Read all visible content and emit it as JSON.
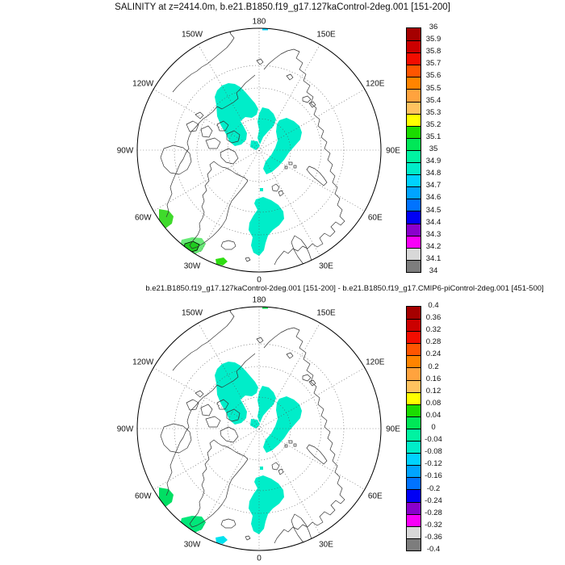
{
  "page": {
    "background": "#FFFFFF"
  },
  "figure1": {
    "title": "SALINITY at z=2414.0m, b.e21.B1850.f19_g17.127kaControl-2deg.001 [151-200]",
    "colorbar_labels": [
      "36",
      "35.9",
      "35.8",
      "35.7",
      "35.6",
      "35.5",
      "35.4",
      "35.3",
      "35.2",
      "35.1",
      "35",
      "34.9",
      "34.8",
      "34.7",
      "34.6",
      "34.5",
      "34.4",
      "34.3",
      "34.2",
      "34.1",
      "34"
    ],
    "map_fills": {
      "blobs": "#00EDC9",
      "top_sliver": "#00D2FF",
      "patch_60w": "#3FDA2B",
      "patch_30w_outer": "#68EA77",
      "patch_30w_core": "#1FCD1F",
      "patch_30w_core_stroke": "#000000",
      "patch_small": "#2FDD12"
    }
  },
  "figure2": {
    "title": "b.e21.B1850.f19_g17.127kaControl-2deg.001 [151-200] - b.e21.B1850.f19_g17.CMIP6-piControl-2deg.001 [451-500]",
    "colorbar_labels": [
      "0.4",
      "0.36",
      "0.32",
      "0.28",
      "0.24",
      "0.2",
      "0.16",
      "0.12",
      "0.08",
      "0.04",
      "0",
      "-0.04",
      "-0.08",
      "-0.12",
      "-0.16",
      "-0.2",
      "-0.24",
      "-0.28",
      "-0.32",
      "-0.36",
      "-0.4"
    ],
    "map_fills": {
      "blobs": "#00EDC9",
      "top_sliver": "#00DC50",
      "patch_60w": "#00DF63",
      "patch_30w_outer": "#00E87A",
      "patch_30w_core": "#00E87A",
      "patch_30w_core_stroke": "none",
      "patch_small": "#00E2EE"
    }
  },
  "ring_labels": [
    {
      "text": "180",
      "angle": 90
    },
    {
      "text": "150W",
      "angle": 120
    },
    {
      "text": "150E",
      "angle": 60
    },
    {
      "text": "120W",
      "angle": 150
    },
    {
      "text": "120E",
      "angle": 30
    },
    {
      "text": "90W",
      "angle": 180
    },
    {
      "text": "90E",
      "angle": 0
    },
    {
      "text": "60W",
      "angle": 210
    },
    {
      "text": "60E",
      "angle": 330
    },
    {
      "text": "30W",
      "angle": 240
    },
    {
      "text": "30E",
      "angle": 300
    },
    {
      "text": "0",
      "angle": 270
    }
  ],
  "colorbar_colors": [
    "#A50000",
    "#CB0000",
    "#F30D00",
    "#FF5500",
    "#FF8400",
    "#FFA33E",
    "#FFC35F",
    "#FFFF00",
    "#1BDC00",
    "#00E757",
    "#00F3A1",
    "#00EDC9",
    "#00D2FF",
    "#00A4FF",
    "#0073FF",
    "#0000F5",
    "#8A00CC",
    "#F800F8",
    "#D8D8D8",
    "#7D7D7D"
  ],
  "chart_data": [
    {
      "type": "heatmap",
      "variant": "north-polar-stereographic filled-contour map",
      "title": "SALINITY at z=2414.0m, b.e21.B1850.f19_g17.127kaControl-2deg.001 [151-200]",
      "projection": "north polar stereographic, dashed lon lines every 30 deg, dashed lat circles, coastline outlines, white = no data / outside range",
      "longitude_ring_labels": [
        "180",
        "150W",
        "150E",
        "120W",
        "120E",
        "90W",
        "90E",
        "60W",
        "60E",
        "30W",
        "30E",
        "0"
      ],
      "legend_position": "vertical labelbar at right",
      "levels": [
        34,
        34.1,
        34.2,
        34.3,
        34.4,
        34.5,
        34.6,
        34.7,
        34.8,
        34.9,
        35,
        35.1,
        35.2,
        35.3,
        35.4,
        35.5,
        35.6,
        35.7,
        35.8,
        35.9,
        36
      ],
      "colors_top_to_bottom": [
        "#A50000",
        "#CB0000",
        "#F30D00",
        "#FF5500",
        "#FF8400",
        "#FFA33E",
        "#FFC35F",
        "#FFFF00",
        "#1BDC00",
        "#00E757",
        "#00F3A1",
        "#00EDC9",
        "#00D2FF",
        "#00A4FF",
        "#0073FF",
        "#0000F5",
        "#8A00CC",
        "#F800F8",
        "#D8D8D8",
        "#7D7D7D"
      ],
      "filled_regions": [
        {
          "location": "central Arctic basin lobes around the pole and tongue toward Fram Strait / Greenland Sea",
          "value_bin": "34.8-34.9",
          "color": "#00EDC9"
        },
        {
          "location": "Labrador Sea at map rim near 60W",
          "value_bin": "35.1-35.2",
          "color": "#3FDA2B"
        },
        {
          "location": "Irminger Sea south of Greenland near 30W (green core outlined in black inside lighter green)",
          "value_bin": "35.0-35.2",
          "color": "#68EA77"
        },
        {
          "location": "small patch at map rim south of Iceland",
          "value_bin": "35.1-35.2",
          "color": "#2FDD12"
        },
        {
          "location": "tiny sliver at top rim near 180",
          "value_bin": "34.7-34.8",
          "color": "#00D2FF"
        }
      ]
    },
    {
      "type": "heatmap",
      "variant": "north-polar-stereographic filled-contour difference map",
      "title": "b.e21.B1850.f19_g17.127kaControl-2deg.001 [151-200] - b.e21.B1850.f19_g17.CMIP6-piControl-2deg.001 [451-500]",
      "projection": "north polar stereographic, dashed lon lines every 30 deg, dashed lat circles, coastline outlines, white = no data / outside range",
      "longitude_ring_labels": [
        "180",
        "150W",
        "150E",
        "120W",
        "120E",
        "90W",
        "90E",
        "60W",
        "60E",
        "30W",
        "30E",
        "0"
      ],
      "legend_position": "vertical labelbar at right",
      "levels": [
        -0.4,
        -0.36,
        -0.32,
        -0.28,
        -0.24,
        -0.2,
        -0.16,
        -0.12,
        -0.08,
        -0.04,
        0,
        0.04,
        0.08,
        0.12,
        0.16,
        0.2,
        0.24,
        0.28,
        0.32,
        0.36,
        0.4
      ],
      "colors_top_to_bottom": [
        "#A50000",
        "#CB0000",
        "#F30D00",
        "#FF5500",
        "#FF8400",
        "#FFA33E",
        "#FFC35F",
        "#FFFF00",
        "#1BDC00",
        "#00E757",
        "#00F3A1",
        "#00EDC9",
        "#00D2FF",
        "#00A4FF",
        "#0073FF",
        "#0000F5",
        "#8A00CC",
        "#F800F8",
        "#D8D8D8",
        "#7D7D7D"
      ],
      "filled_regions": [
        {
          "location": "central Arctic basin lobes around the pole and tongue toward Fram Strait / Greenland Sea",
          "value_bin": "-0.08 to -0.04",
          "color": "#00EDC9"
        },
        {
          "location": "Labrador Sea at map rim near 60W",
          "value_bin": "0 to 0.04",
          "color": "#00DF63"
        },
        {
          "location": "Irminger Sea south of Greenland near 30W",
          "value_bin": "0 to 0.04",
          "color": "#00E87A"
        },
        {
          "location": "small patch at map rim south of Iceland",
          "value_bin": "-0.04 to 0",
          "color": "#00E2EE"
        },
        {
          "location": "tiny sliver at top rim near 180",
          "value_bin": "0 to 0.04",
          "color": "#00DC50"
        }
      ]
    }
  ]
}
